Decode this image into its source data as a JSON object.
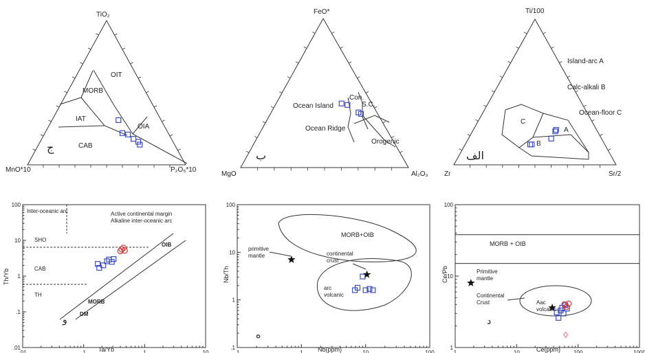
{
  "colors": {
    "line": "#333333",
    "sample_blue": "#3b4cc0",
    "sample_red": "#d63a3a",
    "outlier_pink": "#e37fa3",
    "star": "#111111"
  },
  "chart_data": [
    {
      "type": "scatter",
      "subtype": "ternary",
      "vertices": {
        "top": "TiO₂",
        "left": "MnO*10",
        "right": "P₂O₅*10"
      },
      "fields": [
        "OIT",
        "MORB",
        "IAT",
        "OIA",
        "CAB"
      ],
      "panel_label": "ج",
      "points_blue": [
        {
          "top": 0.31,
          "left": 0.27,
          "right": 0.42
        },
        {
          "top": 0.22,
          "left": 0.29,
          "right": 0.49
        },
        {
          "top": 0.21,
          "left": 0.26,
          "right": 0.53
        },
        {
          "top": 0.18,
          "left": 0.24,
          "right": 0.58
        },
        {
          "top": 0.16,
          "left": 0.22,
          "right": 0.62
        },
        {
          "top": 0.14,
          "left": 0.22,
          "right": 0.64
        }
      ]
    },
    {
      "type": "scatter",
      "subtype": "ternary",
      "vertices": {
        "top": "FeO*",
        "left": "MgO",
        "right": "Al₂O₃"
      },
      "fields": [
        "Ocean Island",
        "Con.",
        "S.C.",
        "Ocean Ridge",
        "Orogenic"
      ],
      "panel_label": "ب",
      "points_blue": [
        {
          "top": 0.43,
          "left": 0.18,
          "right": 0.39
        },
        {
          "top": 0.42,
          "left": 0.15,
          "right": 0.43
        },
        {
          "top": 0.37,
          "left": 0.11,
          "right": 0.52
        },
        {
          "top": 0.36,
          "left": 0.1,
          "right": 0.54
        }
      ]
    },
    {
      "type": "scatter",
      "subtype": "ternary",
      "vertices": {
        "top": "Ti/100",
        "left": "Zr",
        "right": "Sr/2"
      },
      "fields": [
        "A",
        "B",
        "C"
      ],
      "field_legend": [
        "Island-arc A",
        "Calc-alkali B",
        "Ocean-floor C"
      ],
      "panel_label": "الف",
      "points_blue": [
        {
          "top": 0.14,
          "left": 0.46,
          "right": 0.4
        },
        {
          "top": 0.14,
          "left": 0.45,
          "right": 0.41
        },
        {
          "top": 0.18,
          "left": 0.31,
          "right": 0.51
        },
        {
          "top": 0.23,
          "left": 0.26,
          "right": 0.51
        },
        {
          "top": 0.24,
          "left": 0.25,
          "right": 0.51
        }
      ]
    },
    {
      "type": "scatter",
      "xlabel": "Ta/Yb",
      "ylabel": "Th/Yb",
      "xscale": "log",
      "yscale": "log",
      "xlim": [
        0.01,
        10
      ],
      "ylim": [
        0.01,
        100
      ],
      "xticks": [
        ".01",
        ".1",
        "1",
        "10"
      ],
      "yticks": [
        ".01",
        ".1",
        "1",
        "10",
        "100"
      ],
      "annotations": [
        "Inter-oceanic arc",
        "Active continental margin",
        "Alkaline inter-oceanic arc",
        "SHO",
        "CAB",
        "TH",
        "OIB",
        "MORB",
        "DM"
      ],
      "panel_label": "و",
      "points_blue": [
        {
          "x": 0.17,
          "y": 2.2
        },
        {
          "x": 0.18,
          "y": 1.7
        },
        {
          "x": 0.21,
          "y": 2.0
        },
        {
          "x": 0.24,
          "y": 2.6
        },
        {
          "x": 0.26,
          "y": 2.9
        },
        {
          "x": 0.29,
          "y": 2.5
        },
        {
          "x": 0.31,
          "y": 3.0
        }
      ],
      "points_red": [
        {
          "x": 0.4,
          "y": 5.0
        },
        {
          "x": 0.42,
          "y": 5.6
        },
        {
          "x": 0.45,
          "y": 6.2
        },
        {
          "x": 0.47,
          "y": 5.2
        }
      ]
    },
    {
      "type": "scatter",
      "xlabel": "Nb(ppm)",
      "ylabel": "Nb/Th",
      "xscale": "log",
      "yscale": "log",
      "xlim": [
        0.1,
        100
      ],
      "ylim": [
        0.1,
        100
      ],
      "xticks": [
        ".1",
        "1",
        "10",
        "100"
      ],
      "yticks": [
        ".1",
        "1",
        "10",
        "100"
      ],
      "fields": [
        "MORB+OIB",
        "continental crust",
        "arc volcanic"
      ],
      "reference_points": [
        {
          "label": "primitive mantle",
          "x": 0.7,
          "y": 7.0
        },
        {
          "label": "continental crust",
          "x": 10.5,
          "y": 3.4
        }
      ],
      "panel_label": "ه",
      "points_blue": [
        {
          "x": 6.8,
          "y": 1.6
        },
        {
          "x": 7.5,
          "y": 1.8
        },
        {
          "x": 9.0,
          "y": 3.1
        },
        {
          "x": 10.0,
          "y": 1.6
        },
        {
          "x": 11.5,
          "y": 1.7
        },
        {
          "x": 13.0,
          "y": 1.6
        }
      ]
    },
    {
      "type": "scatter",
      "xlabel": "Ce(ppm)",
      "ylabel": "Ce/Pb",
      "xscale": "log",
      "yscale": "log",
      "xlim": [
        1,
        1000
      ],
      "ylim": [
        1,
        100
      ],
      "xticks": [
        "1",
        "10",
        "100",
        "1000"
      ],
      "yticks": [
        "1",
        "10",
        "100"
      ],
      "fields": [
        "MORB + OIB",
        "Aac volcanic"
      ],
      "band": [
        15,
        38
      ],
      "reference_points": [
        {
          "label": "Primitive mantle",
          "x": 1.8,
          "y": 8.0
        },
        {
          "label": "Continental Crust",
          "x": 38,
          "y": 3.6
        }
      ],
      "panel_label": "د",
      "points_blue": [
        {
          "x": 45,
          "y": 3.1
        },
        {
          "x": 48,
          "y": 2.6
        },
        {
          "x": 52,
          "y": 3.3
        },
        {
          "x": 55,
          "y": 3.6
        },
        {
          "x": 58,
          "y": 3.0
        },
        {
          "x": 62,
          "y": 3.9
        },
        {
          "x": 66,
          "y": 3.5
        }
      ],
      "points_red": [
        {
          "x": 60,
          "y": 4.0
        },
        {
          "x": 65,
          "y": 3.7
        },
        {
          "x": 70,
          "y": 4.1
        }
      ],
      "points_pink": [
        {
          "x": 63,
          "y": 1.5
        }
      ]
    }
  ]
}
